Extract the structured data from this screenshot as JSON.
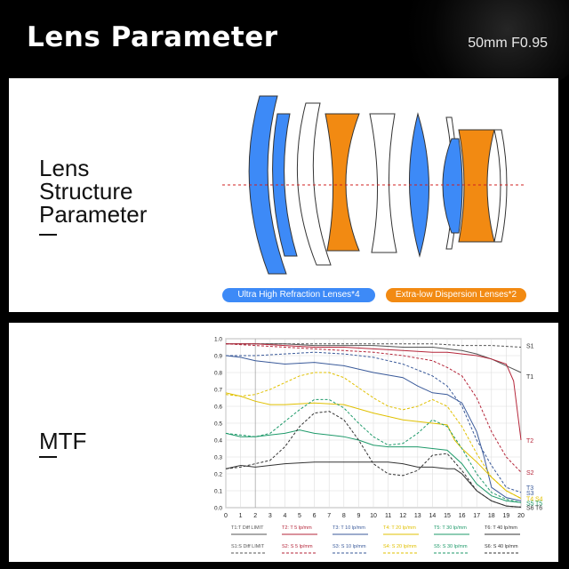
{
  "header": {
    "title": "Lens Parameter",
    "subtitle": "50mm F0.95"
  },
  "structure": {
    "title_lines": [
      "Lens",
      "Structure",
      "Parameter"
    ],
    "legend": {
      "blue": "Ultra High Refraction Lenses*4",
      "orange": "Extra-low Dispersion Lenses*2"
    },
    "colors": {
      "blue": "#3d8af7",
      "orange": "#f28a12"
    }
  },
  "mtf": {
    "title": "MTF",
    "chart_data": {
      "type": "line",
      "xlim": [
        0,
        20
      ],
      "ylim": [
        0,
        1.0
      ],
      "x_ticks": [
        "0",
        "1",
        "2",
        "3",
        "4",
        "5",
        "6",
        "7",
        "8",
        "9",
        "10",
        "11",
        "12",
        "13",
        "14",
        "15",
        "16",
        "17",
        "18",
        "19",
        "20"
      ],
      "y_ticks": [
        "0.0",
        "0.1",
        "0.2",
        "0.3",
        "0.4",
        "0.5",
        "0.6",
        "0.7",
        "0.8",
        "0.9",
        "1.0"
      ],
      "grid": true,
      "right_labels": [
        {
          "text": "S1",
          "y": 0.96,
          "color": "#333"
        },
        {
          "text": "T1",
          "y": 0.78,
          "color": "#333"
        },
        {
          "text": "T2",
          "y": 0.4,
          "color": "#b5263a"
        },
        {
          "text": "S2",
          "y": 0.21,
          "color": "#b5263a"
        },
        {
          "text": "T3",
          "y": 0.12,
          "color": "#3a5a9a"
        },
        {
          "text": "S3",
          "y": 0.09,
          "color": "#3a5a9a"
        },
        {
          "text": "T4",
          "y": 0.055,
          "color": "#e0c000"
        },
        {
          "text": "S4",
          "y": 0.055,
          "color": "#e0c000"
        },
        {
          "text": "S5",
          "y": 0.03,
          "color": "#1e9a6a"
        },
        {
          "text": "T5",
          "y": 0.03,
          "color": "#1e9a6a"
        },
        {
          "text": "S6",
          "y": 0.003,
          "color": "#333"
        },
        {
          "text": "T6",
          "y": 0.003,
          "color": "#333"
        }
      ],
      "series": [
        {
          "name": "T1:T Diff LIMIT",
          "color": "#555555",
          "dash": false,
          "x": [
            0,
            2,
            4,
            6,
            8,
            10,
            12,
            14,
            15,
            16,
            17,
            18,
            19,
            20
          ],
          "y": [
            0.97,
            0.97,
            0.97,
            0.96,
            0.96,
            0.96,
            0.95,
            0.95,
            0.94,
            0.93,
            0.91,
            0.88,
            0.84,
            0.8
          ]
        },
        {
          "name": "S1:S Diff LIMIT",
          "color": "#555555",
          "dash": true,
          "x": [
            0,
            2,
            4,
            6,
            8,
            10,
            12,
            14,
            16,
            18,
            20
          ],
          "y": [
            0.97,
            0.97,
            0.97,
            0.97,
            0.97,
            0.97,
            0.97,
            0.97,
            0.96,
            0.96,
            0.95
          ]
        },
        {
          "name": "T2: T 5 lp/mm",
          "color": "#b5263a",
          "dash": false,
          "x": [
            0,
            2,
            4,
            6,
            8,
            10,
            12,
            14,
            15,
            16,
            17,
            18,
            19,
            19.5,
            20
          ],
          "y": [
            0.97,
            0.97,
            0.96,
            0.95,
            0.95,
            0.94,
            0.93,
            0.92,
            0.92,
            0.91,
            0.9,
            0.88,
            0.85,
            0.75,
            0.4
          ]
        },
        {
          "name": "S2: S 5 lp/mm",
          "color": "#b5263a",
          "dash": true,
          "x": [
            0,
            2,
            4,
            6,
            8,
            10,
            12,
            14,
            15,
            16,
            17,
            18,
            19,
            20
          ],
          "y": [
            0.97,
            0.96,
            0.95,
            0.94,
            0.93,
            0.92,
            0.9,
            0.87,
            0.83,
            0.78,
            0.65,
            0.45,
            0.3,
            0.21
          ]
        },
        {
          "name": "T3: T 10 lp/mm",
          "color": "#3a5a9a",
          "dash": false,
          "x": [
            0,
            1,
            2,
            3,
            4,
            6,
            8,
            10,
            12,
            13,
            14,
            15,
            16,
            17,
            17.5,
            18,
            19,
            20
          ],
          "y": [
            0.9,
            0.89,
            0.87,
            0.86,
            0.85,
            0.86,
            0.84,
            0.8,
            0.77,
            0.72,
            0.68,
            0.67,
            0.62,
            0.45,
            0.3,
            0.12,
            0.06,
            0.04
          ]
        },
        {
          "name": "S3: S 10 lp/mm",
          "color": "#3a5a9a",
          "dash": true,
          "x": [
            0,
            2,
            4,
            6,
            8,
            10,
            12,
            14,
            15,
            16,
            17,
            18,
            19,
            20
          ],
          "y": [
            0.9,
            0.9,
            0.91,
            0.92,
            0.91,
            0.89,
            0.85,
            0.78,
            0.72,
            0.6,
            0.4,
            0.25,
            0.12,
            0.09
          ]
        },
        {
          "name": "T4: T 20 lp/mm",
          "color": "#e0c000",
          "dash": false,
          "x": [
            0,
            1,
            2,
            3,
            4,
            6,
            8,
            10,
            12,
            14,
            15,
            15.5,
            16,
            17,
            18,
            19,
            20
          ],
          "y": [
            0.68,
            0.66,
            0.63,
            0.61,
            0.61,
            0.62,
            0.61,
            0.56,
            0.52,
            0.5,
            0.49,
            0.4,
            0.35,
            0.27,
            0.18,
            0.1,
            0.055
          ]
        },
        {
          "name": "S4: S 20 lp/mm",
          "color": "#e0c000",
          "dash": true,
          "x": [
            0,
            1,
            2,
            3,
            4,
            5,
            6,
            7,
            8,
            9,
            10,
            11,
            12,
            13,
            14,
            15,
            16,
            17,
            18,
            19,
            20
          ],
          "y": [
            0.67,
            0.66,
            0.67,
            0.7,
            0.74,
            0.78,
            0.8,
            0.8,
            0.77,
            0.71,
            0.65,
            0.6,
            0.58,
            0.6,
            0.64,
            0.6,
            0.48,
            0.32,
            0.18,
            0.1,
            0.055
          ]
        },
        {
          "name": "T5: T 30 lp/mm",
          "color": "#1e9a6a",
          "dash": false,
          "x": [
            0,
            1,
            2,
            3,
            4,
            5,
            6,
            7,
            8,
            9,
            10,
            11,
            12,
            13,
            14,
            15,
            16,
            17,
            18,
            19,
            20
          ],
          "y": [
            0.44,
            0.42,
            0.42,
            0.43,
            0.44,
            0.46,
            0.44,
            0.43,
            0.42,
            0.4,
            0.37,
            0.36,
            0.36,
            0.36,
            0.35,
            0.34,
            0.26,
            0.14,
            0.07,
            0.04,
            0.03
          ]
        },
        {
          "name": "S5: S 30 lp/mm",
          "color": "#1e9a6a",
          "dash": true,
          "x": [
            0,
            1,
            2,
            3,
            4,
            5,
            6,
            7,
            8,
            9,
            10,
            11,
            12,
            13,
            14,
            15,
            16,
            17,
            18,
            19,
            20
          ],
          "y": [
            0.44,
            0.43,
            0.42,
            0.44,
            0.51,
            0.58,
            0.64,
            0.64,
            0.59,
            0.5,
            0.42,
            0.37,
            0.38,
            0.44,
            0.52,
            0.48,
            0.35,
            0.2,
            0.09,
            0.05,
            0.03
          ]
        },
        {
          "name": "T6: T 40 lp/mm",
          "color": "#333333",
          "dash": false,
          "x": [
            0,
            1,
            2,
            3,
            4,
            6,
            8,
            10,
            11,
            12,
            13,
            14,
            15,
            15.5,
            16,
            17,
            18,
            19,
            20
          ],
          "y": [
            0.23,
            0.25,
            0.24,
            0.25,
            0.26,
            0.27,
            0.27,
            0.27,
            0.27,
            0.26,
            0.24,
            0.24,
            0.23,
            0.23,
            0.2,
            0.1,
            0.04,
            0.01,
            0.003
          ]
        },
        {
          "name": "S6: S 40 lp/mm",
          "color": "#333333",
          "dash": true,
          "x": [
            0,
            1,
            2,
            3,
            4,
            5,
            6,
            7,
            8,
            9,
            10,
            11,
            12,
            13,
            14,
            15,
            16,
            17,
            18,
            19,
            20
          ],
          "y": [
            0.23,
            0.24,
            0.26,
            0.28,
            0.36,
            0.48,
            0.56,
            0.57,
            0.52,
            0.4,
            0.26,
            0.2,
            0.19,
            0.22,
            0.31,
            0.32,
            0.22,
            0.1,
            0.04,
            0.01,
            0.003
          ]
        }
      ]
    }
  }
}
